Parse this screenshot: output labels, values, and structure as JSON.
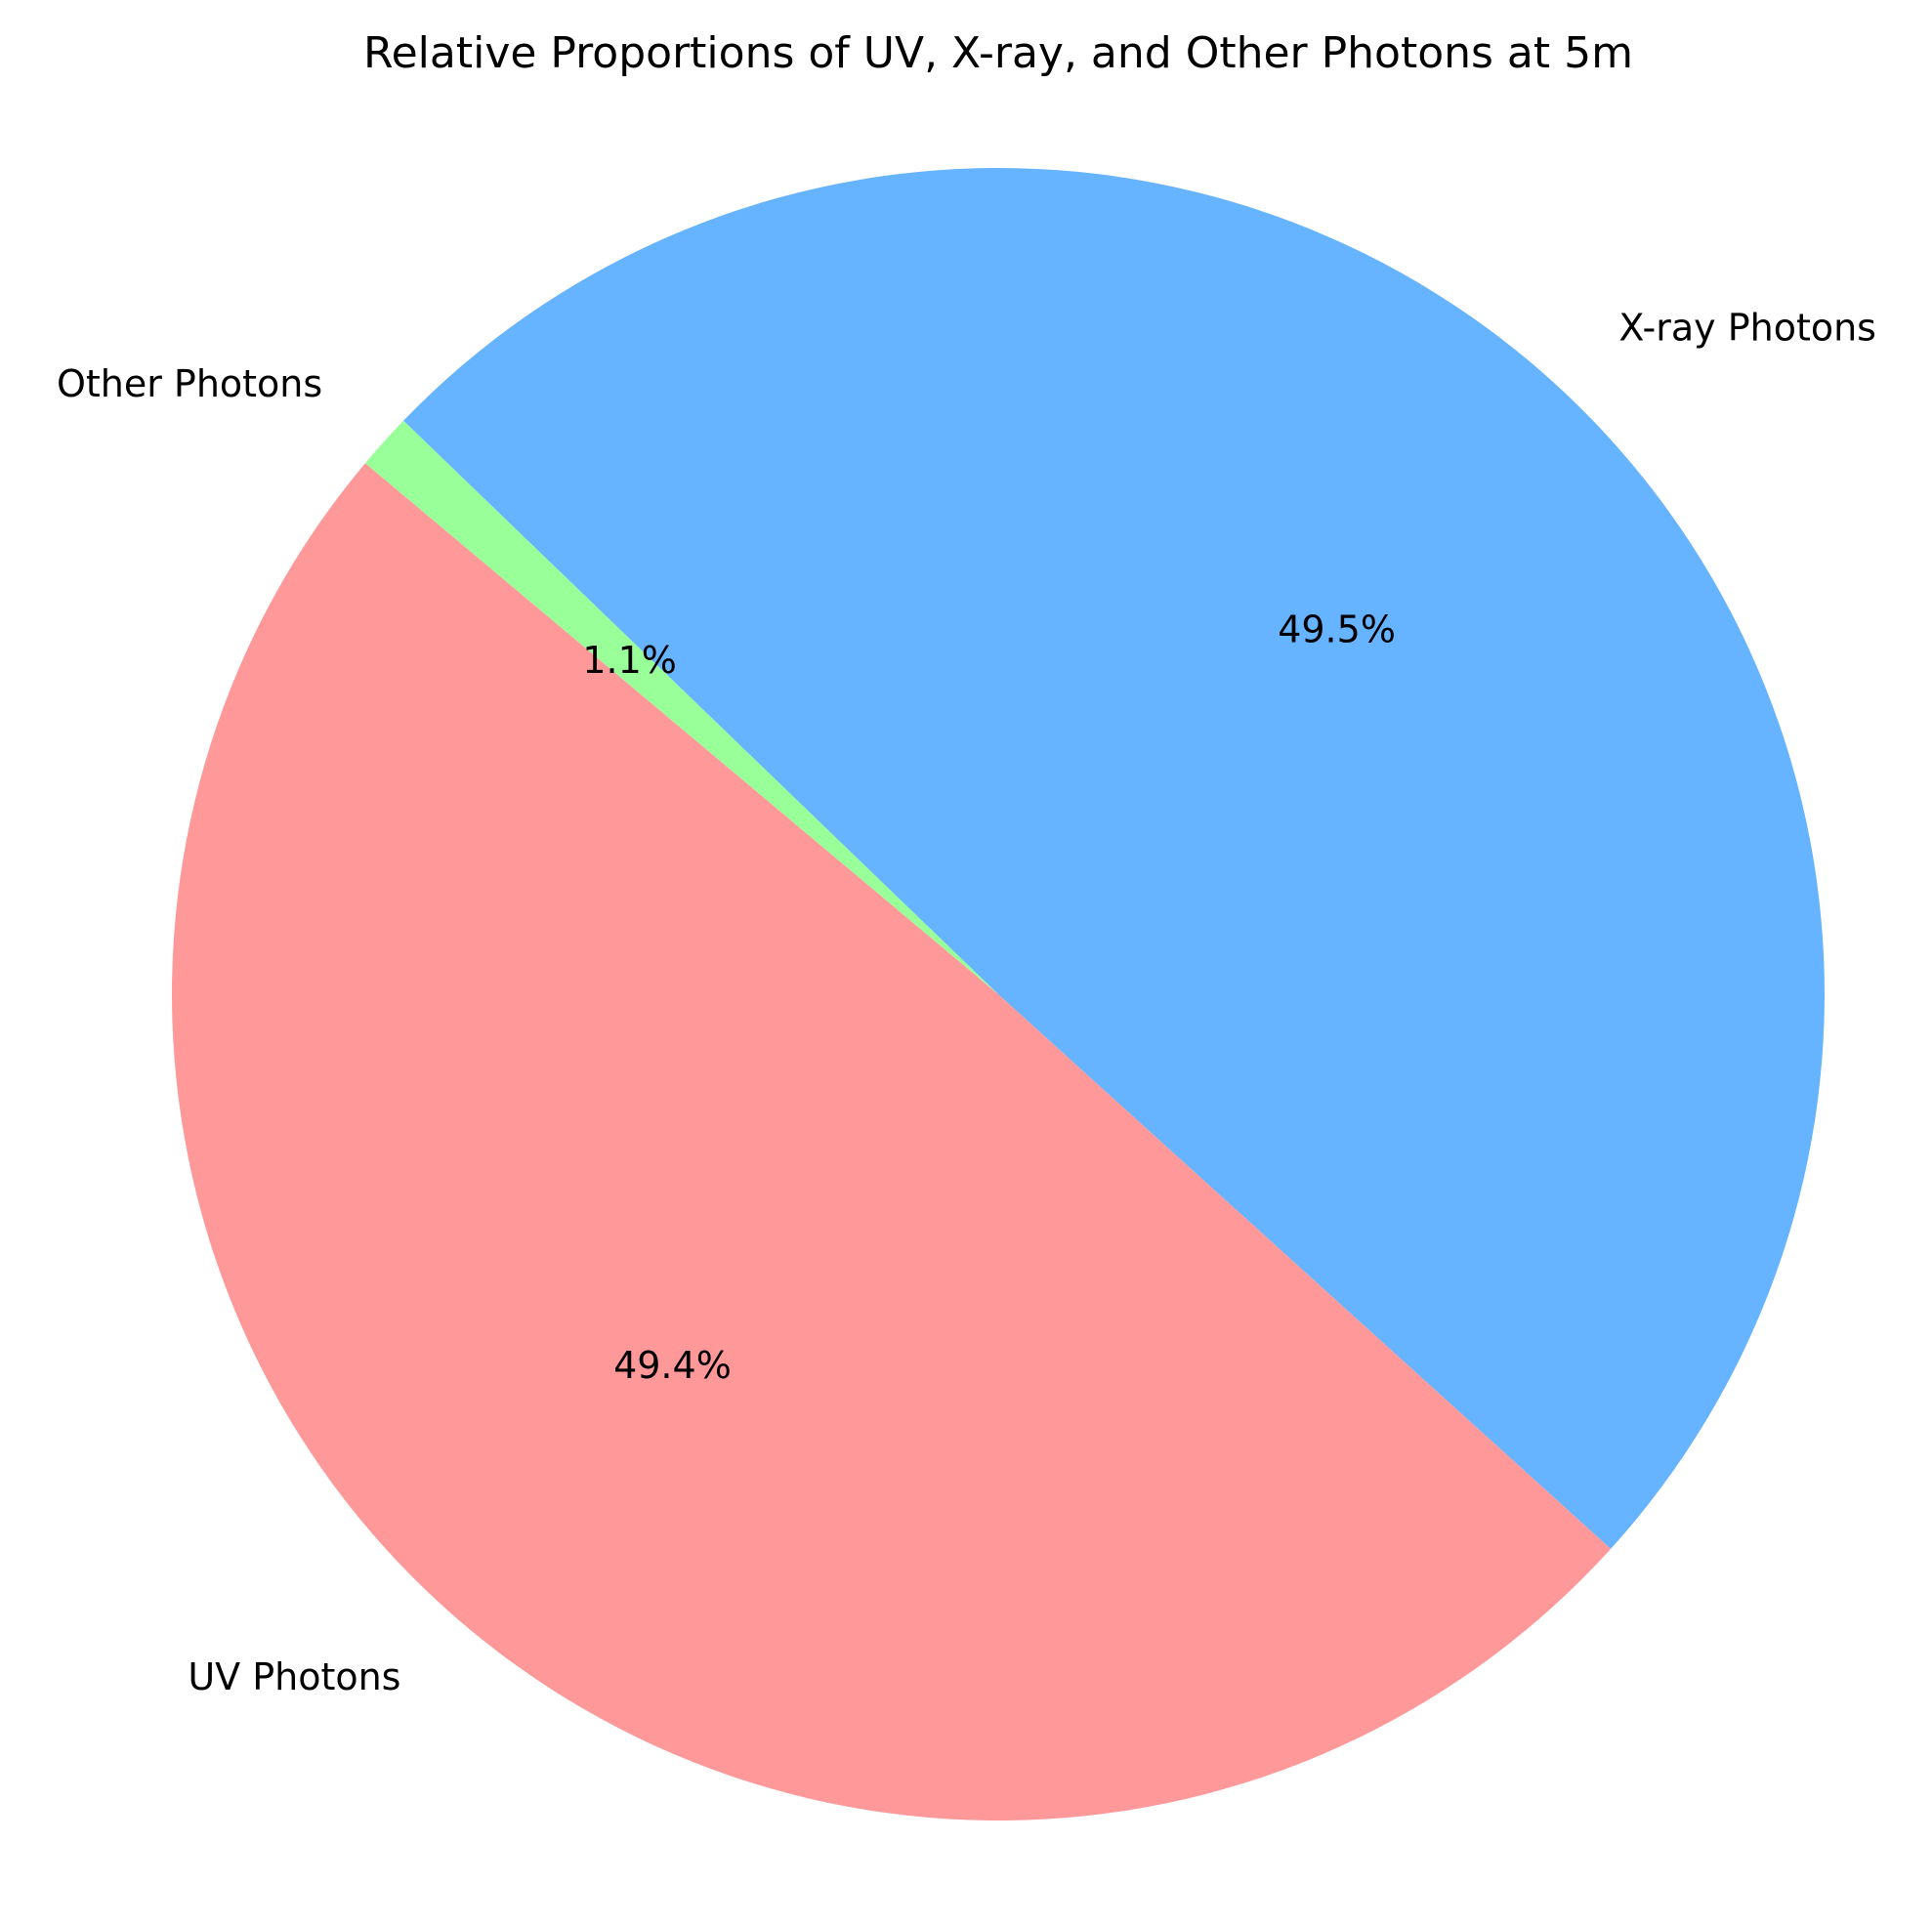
{
  "chart_data": {
    "type": "pie",
    "title": "Relative Proportions of UV, X-ray, and Other Photons at 5m",
    "start_angle": 140,
    "direction": "counterclockwise",
    "slices": [
      {
        "label": "UV Photons",
        "value": 49.4,
        "percent_label": "49.4%",
        "color": "#ff9999"
      },
      {
        "label": "X-ray Photons",
        "value": 49.5,
        "percent_label": "49.5%",
        "color": "#66b3ff"
      },
      {
        "label": "Other Photons",
        "value": 1.1,
        "percent_label": "1.1%",
        "color": "#99ff99"
      }
    ]
  }
}
